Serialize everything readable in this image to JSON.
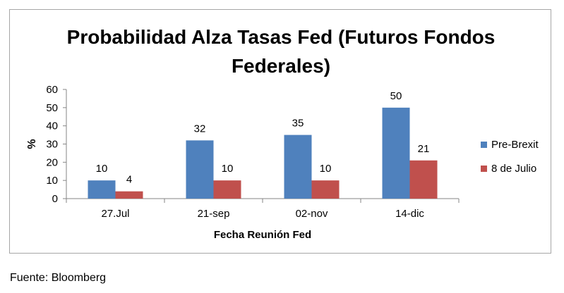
{
  "chart_data": {
    "type": "bar",
    "title_lines": [
      "Probabilidad Alza Tasas Fed (Futuros Fondos",
      "Federales)"
    ],
    "xlabel": "Fecha Reunión Fed",
    "ylabel": "%",
    "ylim": [
      0,
      60
    ],
    "yticks": [
      "0",
      "10",
      "20",
      "30",
      "40",
      "50",
      "60"
    ],
    "categories": [
      "27.Jul",
      "21-sep",
      "02-nov",
      "14-dic"
    ],
    "series": [
      {
        "name": "Pre-Brexit",
        "color": "#4f81bd",
        "values": [
          10,
          32,
          35,
          50
        ]
      },
      {
        "name": "8 de Julio",
        "color": "#c0504d",
        "values": [
          4,
          10,
          10,
          21
        ]
      }
    ],
    "grid": false,
    "legend": "right"
  },
  "source_note": "Fuente: Bloomberg"
}
